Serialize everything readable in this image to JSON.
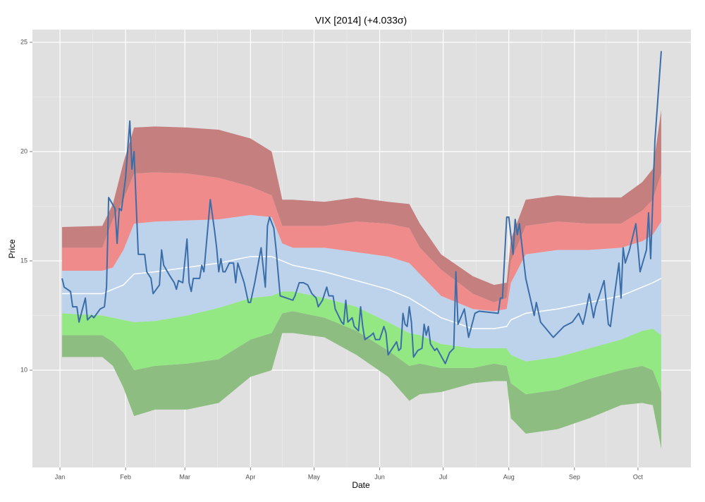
{
  "chart_data": {
    "type": "band",
    "title": "VIX [2014] (+4.033σ)",
    "xlabel": "Date",
    "ylabel": "Price",
    "xlim": [
      -13,
      298
    ],
    "ylim": [
      5.55,
      25.58
    ],
    "xticks": [
      {
        "value": 0,
        "label": "Jan"
      },
      {
        "value": 31,
        "label": "Feb"
      },
      {
        "value": 59,
        "label": "Mar"
      },
      {
        "value": 90,
        "label": "Apr"
      },
      {
        "value": 120,
        "label": "May"
      },
      {
        "value": 151,
        "label": "Jun"
      },
      {
        "value": 181,
        "label": "Jul"
      },
      {
        "value": 212,
        "label": "Aug"
      },
      {
        "value": 243,
        "label": "Sep"
      },
      {
        "value": 273,
        "label": "Oct"
      }
    ],
    "yticks": [
      10,
      15,
      20,
      25
    ],
    "grid": true,
    "bands": {
      "x": [
        1,
        20,
        25,
        30,
        35,
        45,
        60,
        75,
        90,
        100,
        105,
        110,
        125,
        140,
        155,
        165,
        170,
        180,
        195,
        205,
        211,
        213,
        220,
        235,
        250,
        265,
        275,
        280,
        284
      ],
      "bounds": [
        [
          10.6,
          10.6,
          10.2,
          9.2,
          7.9,
          8.2,
          8.2,
          8.5,
          9.7,
          10.0,
          11.7,
          11.7,
          11.5,
          10.7,
          9.7,
          8.6,
          8.9,
          9.0,
          9.4,
          9.5,
          9.5,
          7.8,
          7.1,
          7.3,
          7.8,
          8.4,
          8.5,
          8.4,
          6.4
        ],
        [
          11.6,
          11.6,
          11.3,
          10.8,
          10.0,
          10.2,
          10.3,
          10.5,
          11.4,
          11.7,
          12.6,
          12.7,
          12.4,
          11.8,
          10.9,
          10.2,
          10.3,
          10.1,
          10.1,
          10.3,
          10.2,
          9.4,
          8.9,
          9.1,
          9.6,
          10.0,
          10.2,
          10.0,
          9.0
        ],
        [
          12.6,
          12.5,
          12.4,
          12.3,
          12.2,
          12.25,
          12.5,
          12.85,
          13.3,
          13.4,
          13.6,
          13.6,
          13.3,
          12.9,
          12.2,
          11.7,
          11.6,
          11.2,
          11.0,
          11.0,
          11.0,
          10.7,
          10.4,
          10.6,
          11.0,
          11.4,
          11.8,
          11.9,
          11.6
        ],
        [
          14.55,
          14.55,
          14.7,
          15.5,
          16.7,
          16.8,
          16.85,
          16.9,
          17.1,
          17.0,
          15.8,
          15.6,
          15.6,
          15.4,
          15.2,
          14.9,
          14.4,
          13.4,
          12.8,
          12.7,
          12.8,
          14.0,
          15.3,
          15.5,
          15.5,
          15.6,
          15.9,
          16.2,
          16.8
        ],
        [
          15.6,
          15.6,
          16.9,
          17.8,
          19.0,
          19.05,
          19.0,
          18.8,
          18.4,
          18.0,
          16.6,
          16.6,
          16.6,
          16.8,
          16.7,
          16.5,
          15.6,
          14.6,
          13.5,
          13.1,
          13.3,
          15.0,
          16.6,
          16.8,
          16.7,
          16.7,
          17.3,
          17.8,
          19.0
        ],
        [
          16.55,
          16.6,
          17.6,
          19.5,
          21.1,
          21.15,
          21.1,
          21.0,
          20.6,
          20.0,
          17.8,
          17.8,
          17.7,
          17.9,
          17.7,
          17.6,
          16.7,
          15.3,
          14.3,
          13.9,
          14.0,
          16.0,
          17.8,
          18.0,
          17.9,
          17.9,
          18.6,
          19.2,
          21.9
        ]
      ],
      "colors": [
        "#8dbd80",
        "#93e884",
        "#bdd3ec",
        "#f08b8b",
        "#c57f7f"
      ],
      "mean": [
        13.5,
        13.5,
        13.7,
        13.9,
        14.4,
        14.5,
        14.7,
        14.9,
        15.2,
        15.2,
        15.0,
        14.8,
        14.5,
        14.1,
        13.7,
        13.3,
        13.0,
        12.4,
        11.9,
        11.9,
        12.0,
        12.3,
        12.6,
        12.8,
        13.1,
        13.4,
        13.8,
        14.0,
        14.2
      ],
      "mean_color": "#ffffff"
    },
    "series": [
      {
        "color": "#3b6ea8",
        "x": [
          1,
          2,
          5,
          6,
          8,
          9,
          12,
          13,
          15,
          16,
          19,
          21,
          22,
          23,
          26,
          27,
          28,
          29,
          31,
          33,
          34,
          35,
          36,
          37,
          40,
          41,
          43,
          44,
          47,
          48,
          49,
          52,
          54,
          55,
          56,
          58,
          60,
          61,
          62,
          63,
          66,
          67,
          68,
          71,
          73,
          74,
          75,
          76,
          77,
          78,
          80,
          82,
          83,
          84,
          87,
          89,
          90,
          92,
          95,
          97,
          98,
          99,
          101,
          102,
          104,
          107,
          110,
          111,
          113,
          115,
          117,
          119,
          121,
          122,
          124,
          126,
          127,
          129,
          130,
          133,
          134,
          135,
          136,
          138,
          139,
          141,
          142,
          143,
          144,
          147,
          148,
          149,
          151,
          153,
          154,
          155,
          157,
          159,
          160,
          161,
          162,
          163,
          164,
          165,
          166,
          167,
          169,
          171,
          172,
          173,
          174,
          175,
          177,
          178,
          182,
          184,
          186,
          187,
          188,
          191,
          193,
          196,
          198,
          207,
          208,
          209,
          211,
          212,
          214,
          215,
          216,
          217,
          220,
          224,
          225,
          227,
          233,
          235,
          238,
          242,
          245,
          247,
          248,
          250,
          252,
          253,
          257,
          259,
          260,
          262,
          264,
          265,
          266,
          267,
          269,
          272,
          274,
          277,
          278,
          279,
          281,
          284
        ],
        "values": [
          14.2,
          13.8,
          13.6,
          12.9,
          12.9,
          12.2,
          13.3,
          12.3,
          12.5,
          12.4,
          12.8,
          12.9,
          13.8,
          17.9,
          17.4,
          15.8,
          17.4,
          17.3,
          18.8,
          21.4,
          19.2,
          20.0,
          17.6,
          15.3,
          15.3,
          14.5,
          14.2,
          13.5,
          13.9,
          15.5,
          14.8,
          14.3,
          14.0,
          13.7,
          14.1,
          14.0,
          16.0,
          14.0,
          13.6,
          14.2,
          14.2,
          14.8,
          14.5,
          17.8,
          16.4,
          15.6,
          14.5,
          15.1,
          14.5,
          14.5,
          14.9,
          14.9,
          14.0,
          14.9,
          14.0,
          13.1,
          13.1,
          14.0,
          15.6,
          13.8,
          16.6,
          17.0,
          16.5,
          15.6,
          13.4,
          13.3,
          13.2,
          13.4,
          14.0,
          14.0,
          13.9,
          13.5,
          13.3,
          12.9,
          13.2,
          13.8,
          13.4,
          13.4,
          12.8,
          12.2,
          12.1,
          13.2,
          12.2,
          12.4,
          12.0,
          11.8,
          12.9,
          12.0,
          11.4,
          11.6,
          11.7,
          11.4,
          11.4,
          12.0,
          11.7,
          10.7,
          11.0,
          11.3,
          10.9,
          11.0,
          12.6,
          12.1,
          12.0,
          12.9,
          12.2,
          10.6,
          10.9,
          11.0,
          12.1,
          11.6,
          12.0,
          11.2,
          10.9,
          11.0,
          10.3,
          10.8,
          11.0,
          14.5,
          12.1,
          12.8,
          11.5,
          12.6,
          12.7,
          12.6,
          13.3,
          13.3,
          17.0,
          17.0,
          15.3,
          16.9,
          16.2,
          16.7,
          14.2,
          12.5,
          13.1,
          12.2,
          11.5,
          11.7,
          12.0,
          12.2,
          12.6,
          12.1,
          12.5,
          13.5,
          12.4,
          12.9,
          14.1,
          12.1,
          12.0,
          13.5,
          14.9,
          13.3,
          15.6,
          14.9,
          15.5,
          16.7,
          14.5,
          15.5,
          17.2,
          15.1,
          20.5,
          24.6
        ]
      }
    ]
  }
}
